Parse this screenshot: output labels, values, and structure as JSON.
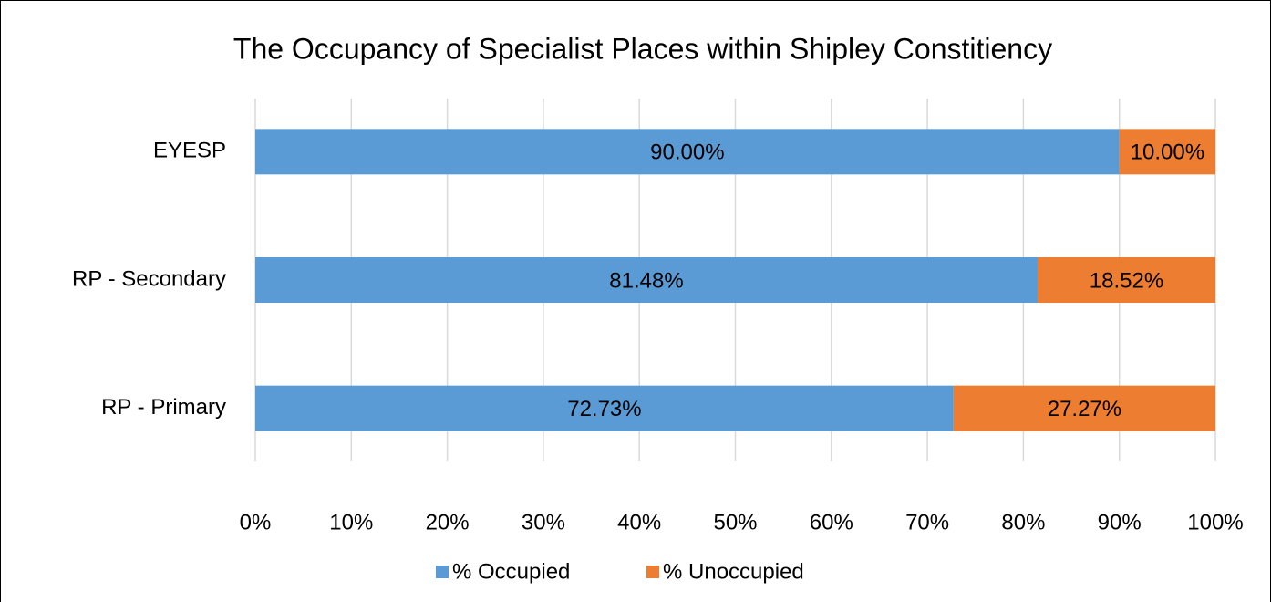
{
  "chart_data": {
    "type": "stacked-bar-horizontal",
    "title": "The Occupancy of Specialist Places within Shipley Constitiency",
    "categories": [
      "EYESP",
      "RP - Secondary",
      "RP - Primary"
    ],
    "series": [
      {
        "name": "% Occupied",
        "color": "#5b9bd5",
        "values": [
          90,
          81.48,
          72.73
        ],
        "value_labels": [
          "90.00%",
          "81.48%",
          "72.73%"
        ]
      },
      {
        "name": "% Unoccupied",
        "color": "#ed7d31",
        "values": [
          10,
          18.52,
          27.27
        ],
        "value_labels": [
          "10.00%",
          "18.52%",
          "27.27%"
        ]
      }
    ],
    "xlim": [
      0,
      100
    ],
    "xticks": [
      {
        "value": 0,
        "label": "0%"
      },
      {
        "value": 10,
        "label": "10%"
      },
      {
        "value": 20,
        "label": "20%"
      },
      {
        "value": 30,
        "label": "30%"
      },
      {
        "value": 40,
        "label": "40%"
      },
      {
        "value": 50,
        "label": "50%"
      },
      {
        "value": 60,
        "label": "60%"
      },
      {
        "value": 70,
        "label": "70%"
      },
      {
        "value": 80,
        "label": "80%"
      },
      {
        "value": 90,
        "label": "90%"
      },
      {
        "value": 100,
        "label": "100%"
      }
    ],
    "grid": true,
    "legend": "bottom"
  }
}
